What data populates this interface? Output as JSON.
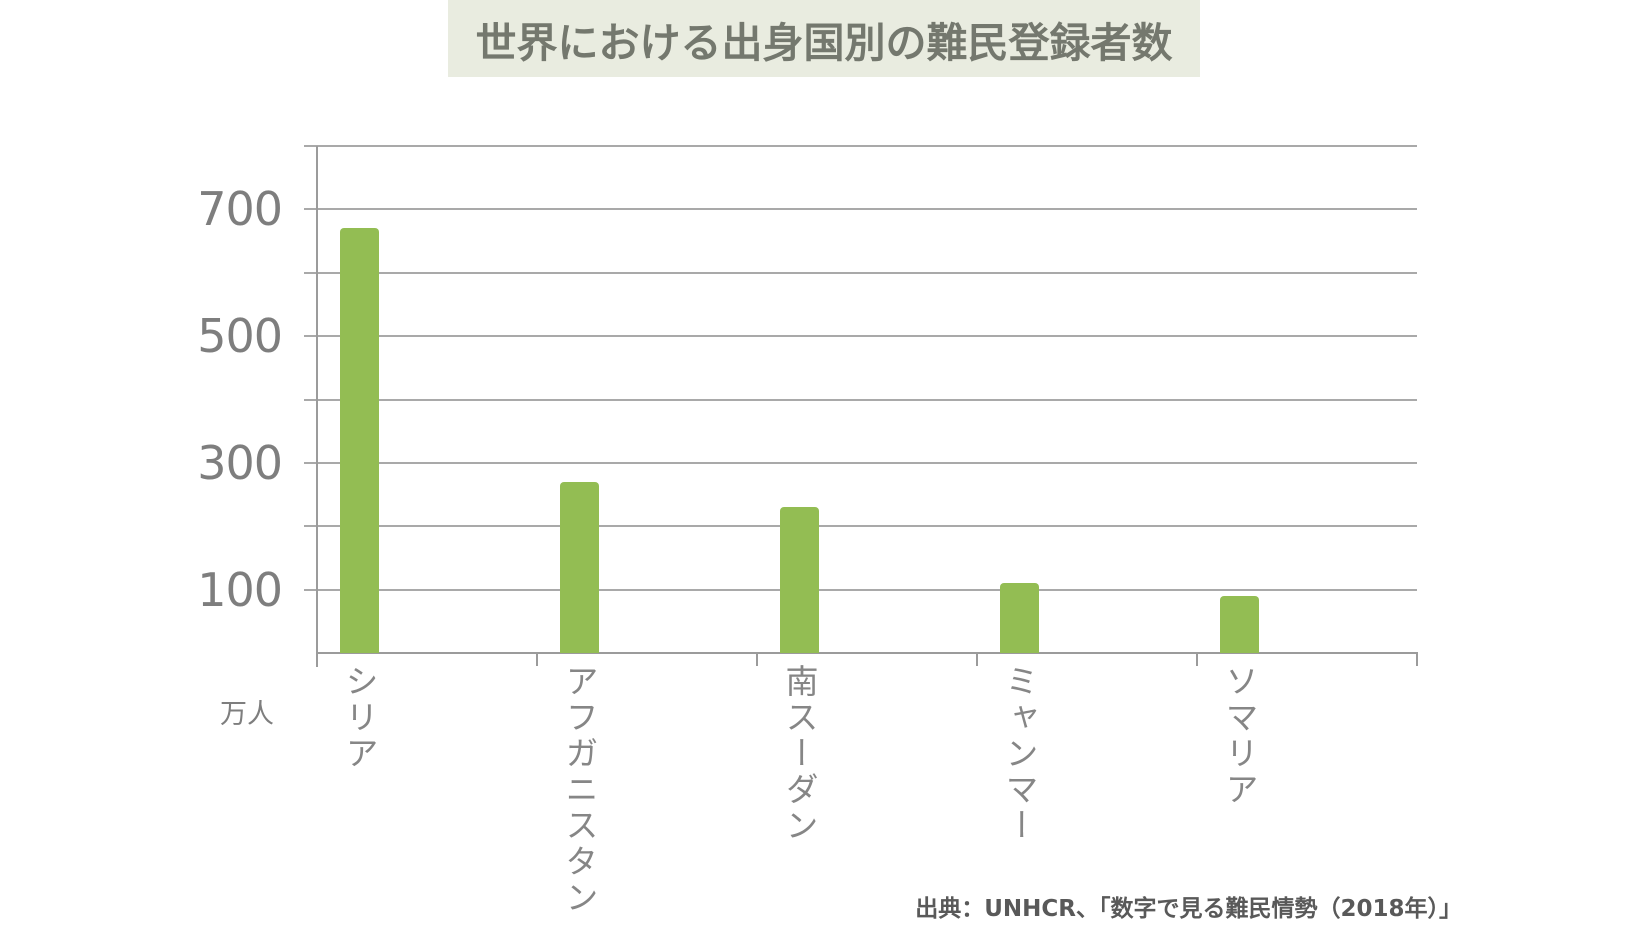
{
  "title": "世界における出身国別の難民登録者数",
  "unit_label": "万人",
  "source": "出典：UNHCR、「数字で見る難民情勢（2018年）」",
  "colors": {
    "bar": "#93bd53",
    "gridline": "#a9a9a9",
    "axis": "#9b9b9b",
    "title_background": "#e9ece0",
    "title_text": "#74786e",
    "tick_label_text": "#7e7e7e",
    "category_label_text": "#868686",
    "source_text": "#595959"
  },
  "chart_data": {
    "type": "bar",
    "title": "世界における出身国別の難民登録者数",
    "categories": [
      "シリア",
      "アフガニスタン",
      "南スーダン",
      "ミャンマー",
      "ソマリア"
    ],
    "values": [
      670,
      270,
      230,
      110,
      90
    ],
    "xlabel": "",
    "ylabel": "万人",
    "ylim": [
      0,
      800
    ],
    "ytick_labels": [
      700,
      500,
      300,
      100
    ],
    "gridline_interval": 100,
    "grid": true,
    "legend": "none",
    "category_orientation": "vertical",
    "source": "出典：UNHCR、「数字で見る難民情勢（2018年）」"
  }
}
